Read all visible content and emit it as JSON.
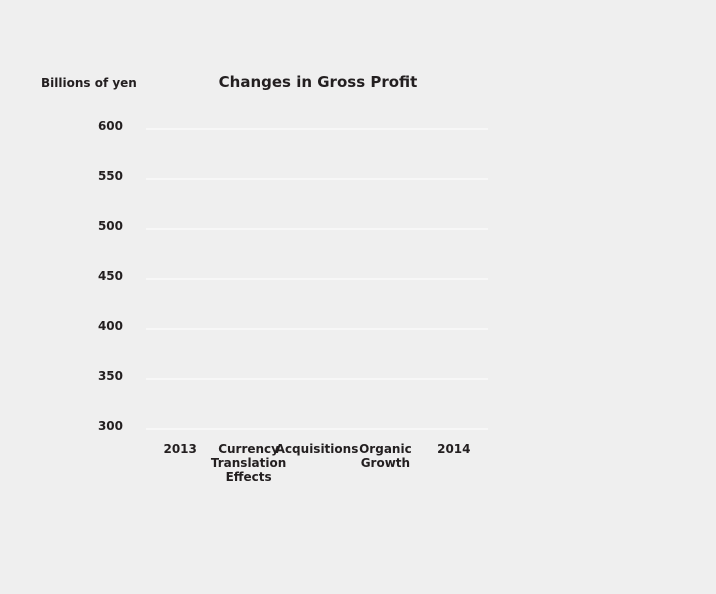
{
  "chart_data": {
    "type": "bar",
    "title": "Changes in Gross Profit",
    "ylabel": "Billions of yen",
    "xlabel": "",
    "ylim": [
      300,
      600
    ],
    "yticks": [
      300,
      350,
      400,
      450,
      500,
      550,
      600
    ],
    "categories": [
      "2013",
      "Currency\nTranslation\nEffects",
      "Acquisitions",
      "Organic\nGrowth",
      "2014"
    ],
    "grid": true,
    "colors": {
      "background": "#efefef",
      "grid": "#ffffff",
      "text": "#231f20"
    }
  }
}
